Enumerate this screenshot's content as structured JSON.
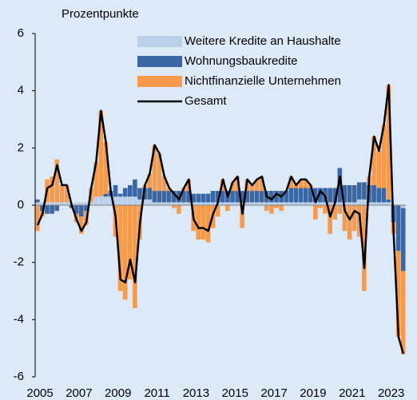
{
  "chart_data": {
    "type": "stacked_bar_line",
    "y_axis_label": "Prozentpunkte",
    "categories": [
      "2005",
      null,
      null,
      null,
      null,
      null,
      null,
      null,
      "2007",
      null,
      null,
      null,
      null,
      null,
      null,
      null,
      "2009",
      null,
      null,
      null,
      null,
      null,
      null,
      null,
      "2011",
      null,
      null,
      null,
      null,
      null,
      null,
      null,
      "2013",
      null,
      null,
      null,
      null,
      null,
      null,
      null,
      "2015",
      null,
      null,
      null,
      null,
      null,
      null,
      null,
      "2017",
      null,
      null,
      null,
      null,
      null,
      null,
      null,
      "2019",
      null,
      null,
      null,
      null,
      null,
      null,
      null,
      "2021",
      null,
      null,
      null,
      null,
      null,
      null,
      null,
      "2023",
      null,
      null,
      null
    ],
    "series": [
      {
        "name": "Weitere Kredite an Haushalte",
        "color": "#b9d0e8",
        "kind": "bar",
        "values": [
          0.1,
          0.1,
          0.1,
          0.1,
          0.1,
          0.1,
          0.1,
          0.1,
          0.1,
          0.1,
          0.1,
          0.1,
          0.3,
          0.3,
          0.3,
          0.3,
          0.3,
          0.3,
          0.3,
          0.3,
          0.3,
          0.2,
          0.2,
          0.2,
          0.1,
          0.1,
          0.1,
          0.1,
          0.1,
          0.1,
          0.1,
          0.1,
          0.1,
          0.1,
          0.1,
          0.1,
          0.1,
          0.1,
          0.1,
          0.1,
          0.1,
          0.1,
          0.1,
          0.1,
          0.1,
          0.1,
          0.1,
          0.1,
          0.1,
          0.1,
          0.1,
          0.1,
          0.1,
          0.1,
          0.1,
          0.1,
          0.1,
          0.1,
          0.1,
          0.1,
          0.1,
          0.1,
          0.1,
          0.1,
          0.1,
          0.1,
          0.2,
          0.2,
          0.1,
          0.1,
          0.1,
          0.1,
          0.1,
          0.0,
          0.0,
          -0.1
        ]
      },
      {
        "name": "Wohnungsbaukredite",
        "color": "#3a67a3",
        "kind": "bar",
        "values": [
          0.1,
          -0.2,
          -0.3,
          -0.3,
          -0.2,
          0,
          0,
          -0.1,
          -0.3,
          -0.4,
          -0.2,
          0,
          0,
          0,
          0.1,
          0.2,
          0.4,
          0.1,
          0.3,
          0.4,
          0.6,
          0.4,
          0.4,
          0.4,
          0.4,
          0.4,
          0.4,
          0.4,
          0.4,
          0.4,
          0.4,
          0.4,
          0.3,
          0.3,
          0.3,
          0.3,
          0.4,
          0.4,
          0.4,
          0.4,
          0.4,
          0.4,
          0.4,
          0.4,
          0.4,
          0.4,
          0.4,
          0.4,
          0.4,
          0.4,
          0.4,
          0.4,
          0.5,
          0.5,
          0.5,
          0.5,
          0.5,
          0.5,
          0.5,
          0.5,
          0.5,
          0.5,
          1.2,
          0.6,
          0.6,
          0.6,
          0.6,
          0.6,
          0.6,
          0.6,
          0.5,
          0.5,
          0.1,
          -0.6,
          -1.6,
          -2.2
        ]
      },
      {
        "name": "Nichtfinanzielle Unternehmen",
        "color": "#f79a4a",
        "kind": "bar",
        "values": [
          -0.9,
          -0.2,
          0.8,
          0.9,
          1.5,
          0.6,
          0.6,
          0.0,
          -0.3,
          -0.6,
          -0.5,
          0.5,
          1.2,
          3.0,
          1.8,
          0.0,
          -1.1,
          -3.0,
          -3.3,
          -2.6,
          -3.6,
          -1.2,
          0.1,
          0.5,
          1.6,
          1.3,
          0.5,
          0.1,
          -0.1,
          -0.3,
          0.1,
          0.4,
          -0.9,
          -1.2,
          -1.2,
          -1.3,
          -0.8,
          -0.4,
          0.4,
          -0.2,
          0.3,
          0.5,
          -0.8,
          0.4,
          0.2,
          0.4,
          0.5,
          -0.2,
          -0.3,
          -0.1,
          -0.2,
          0.0,
          0.4,
          0.1,
          0.3,
          0.3,
          0.1,
          -0.5,
          -0.1,
          -0.3,
          -1.0,
          -0.5,
          -0.3,
          -0.9,
          -1.2,
          -0.9,
          -1.1,
          -3.0,
          0.3,
          1.7,
          1.3,
          2.2,
          4.0,
          -0.4,
          -3.0,
          -2.9
        ]
      },
      {
        "name": "Gesamt",
        "color": "#000000",
        "kind": "line",
        "values": [
          -0.7,
          -0.3,
          0.6,
          0.7,
          1.4,
          0.7,
          0.7,
          0.0,
          -0.5,
          -0.9,
          -0.6,
          0.6,
          1.5,
          3.3,
          2.2,
          0.5,
          -0.4,
          -2.6,
          -2.7,
          -1.9,
          -2.7,
          -0.6,
          0.7,
          1.1,
          2.1,
          1.8,
          1.0,
          0.6,
          0.4,
          0.2,
          0.6,
          0.9,
          -0.5,
          -0.8,
          -0.8,
          -0.9,
          -0.3,
          0.1,
          0.9,
          0.3,
          0.8,
          1.0,
          -0.3,
          0.9,
          0.7,
          0.9,
          1.0,
          0.3,
          0.2,
          0.4,
          0.3,
          0.5,
          1.0,
          0.7,
          0.9,
          0.9,
          0.7,
          0.1,
          0.5,
          0.3,
          -0.4,
          0.1,
          1.0,
          -0.2,
          -0.5,
          -0.2,
          -0.3,
          -2.2,
          1.0,
          2.4,
          1.9,
          2.8,
          4.2,
          -1.0,
          -4.6,
          -5.2
        ]
      }
    ],
    "ylim": [
      -6,
      6
    ],
    "yticks": [
      -6,
      -4,
      -2,
      0,
      2,
      4,
      6
    ]
  }
}
